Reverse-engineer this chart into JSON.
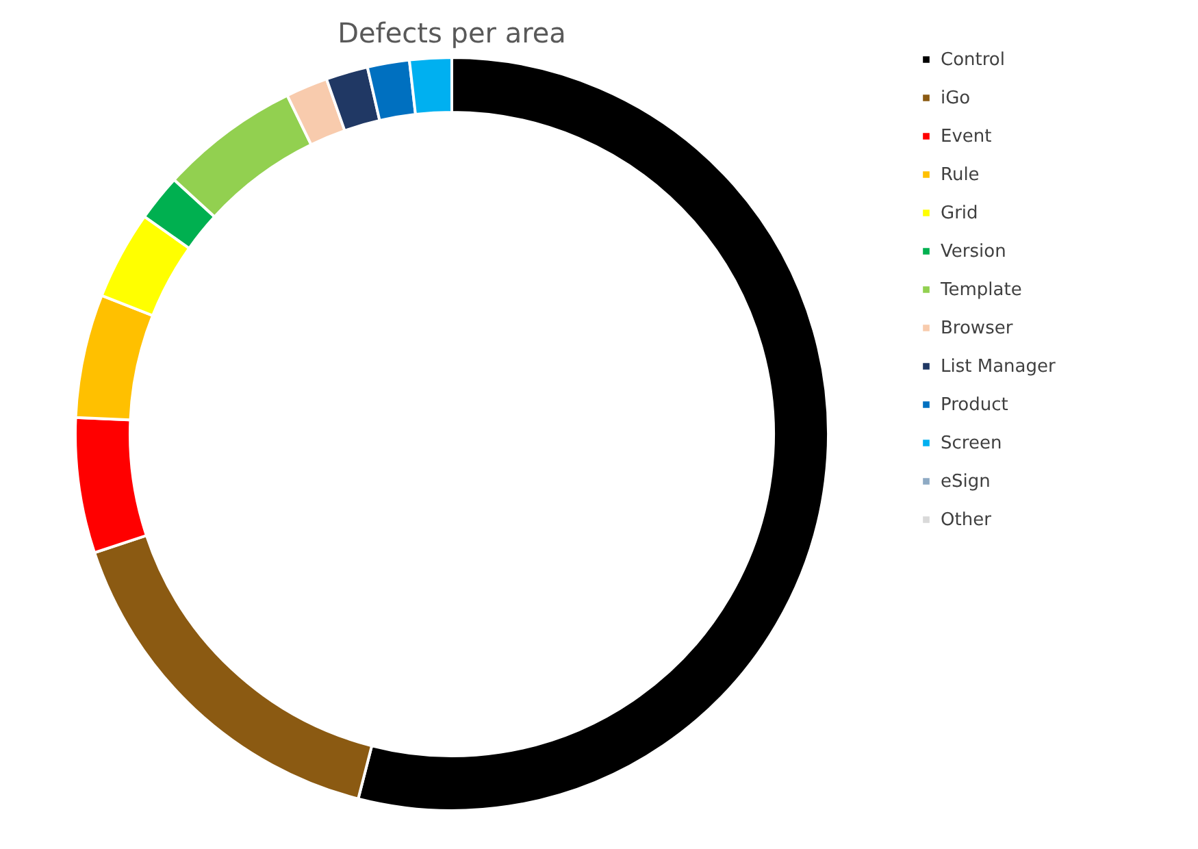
{
  "chart_data": {
    "type": "donut",
    "title": "Defects per area",
    "categories": [
      "Control",
      "iGo",
      "Event",
      "Rule",
      "Grid",
      "Version",
      "Template",
      "Browser",
      "List Manager",
      "Product",
      "Screen",
      "eSign",
      null,
      "Other"
    ],
    "values": [
      54,
      15.9,
      5.8,
      5.3,
      3.8,
      2.0,
      6.0,
      1.8,
      1.8,
      1.8,
      1.8,
      0,
      0,
      0
    ],
    "colors": [
      "#000000",
      "#8b5a12",
      "#ff0000",
      "#ffc000",
      "#ffff00",
      "#00b050",
      "#92d050",
      "#f8cbad",
      "#203864",
      "#0070c0",
      "#00b0f0",
      "#8eaac4",
      "#7f7f7f",
      "#d9d9d9"
    ],
    "legend": "right"
  }
}
